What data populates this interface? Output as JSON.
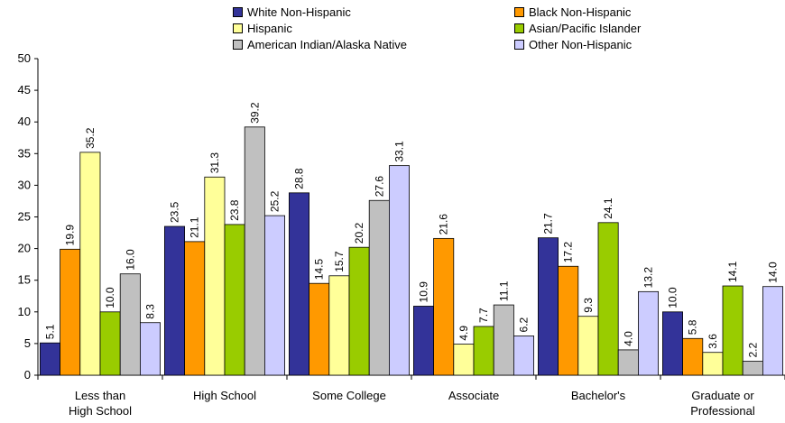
{
  "chart_data": {
    "type": "bar",
    "categories": [
      "Less than High School",
      "High School",
      "Some College",
      "Associate",
      "Bachelor's",
      "Graduate or Professional"
    ],
    "category_lines": [
      [
        "Less than",
        "High School"
      ],
      [
        "High School"
      ],
      [
        "Some College"
      ],
      [
        "Associate"
      ],
      [
        "Bachelor's"
      ],
      [
        "Graduate or",
        "Professional"
      ]
    ],
    "series": [
      {
        "name": "White Non-Hispanic",
        "color": "#333399",
        "values": [
          5.1,
          23.5,
          28.8,
          10.9,
          21.7,
          10.0
        ]
      },
      {
        "name": "Black Non-Hispanic",
        "color": "#FF9900",
        "values": [
          19.9,
          21.1,
          14.5,
          21.6,
          17.2,
          5.8
        ]
      },
      {
        "name": "Hispanic",
        "color": "#FFFF99",
        "values": [
          35.2,
          31.3,
          15.7,
          4.9,
          9.3,
          3.6
        ]
      },
      {
        "name": "Asian/Pacific Islander",
        "color": "#99CC00",
        "values": [
          10.0,
          23.8,
          20.2,
          7.7,
          24.1,
          14.1
        ]
      },
      {
        "name": "American Indian/Alaska Native",
        "color": "#C0C0C0",
        "values": [
          16.0,
          39.2,
          27.6,
          11.1,
          4.0,
          2.2
        ]
      },
      {
        "name": "Other Non-Hispanic",
        "color": "#CCCCFF",
        "values": [
          8.3,
          25.2,
          33.1,
          6.2,
          13.2,
          14.0
        ]
      }
    ],
    "ylim": [
      0,
      50
    ],
    "yticks": [
      0,
      5,
      10,
      15,
      20,
      25,
      30,
      35,
      40,
      45,
      50
    ],
    "grid": false,
    "legend_position": "top"
  }
}
